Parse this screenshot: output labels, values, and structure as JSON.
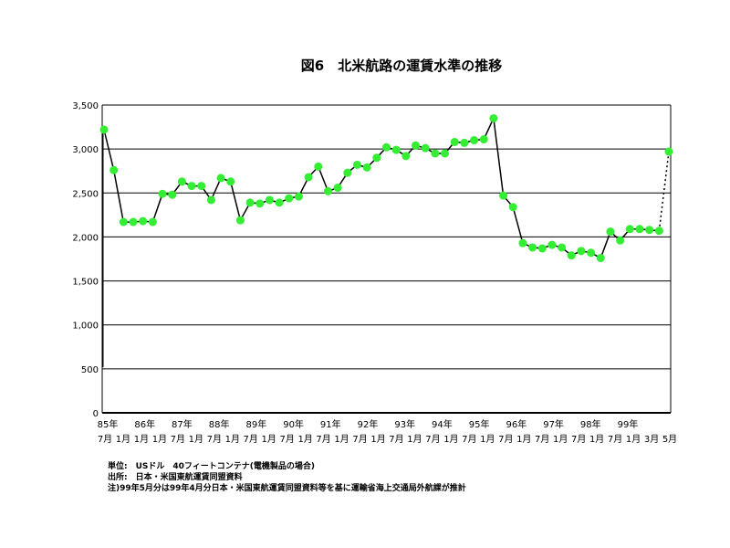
{
  "chart_data": {
    "type": "line",
    "title": "図6　北米航路の運賃水準の推移",
    "ylim": [
      0,
      3500
    ],
    "yticks": [
      "0",
      "500",
      "1,000",
      "1,500",
      "2,000",
      "2,500",
      "3,000",
      "3,500"
    ],
    "grid": true,
    "x_labels_top": [
      "85年",
      "86年",
      "87年",
      "88年",
      "89年",
      "90年",
      "91年",
      "92年",
      "93年",
      "94年",
      "95年",
      "96年",
      "97年",
      "98年",
      "99年"
    ],
    "x_labels_bottom": [
      "7月",
      "1月",
      "1月",
      "1月",
      "7月",
      "1月",
      "7月",
      "1月",
      "7月",
      "1月",
      "7月",
      "1月",
      "7月",
      "1月",
      "7月",
      "1月",
      "7月",
      "1月",
      "7月",
      "1月",
      "7月",
      "1月",
      "7月",
      "1月",
      "7月",
      "1月",
      "7月",
      "1月",
      "7月",
      "1月",
      "3月",
      "5月"
    ],
    "series": [
      {
        "values": [
          3220,
          2760,
          2170,
          2170,
          2180,
          2170,
          2490,
          2480,
          2630,
          2580,
          2580,
          2420,
          2670,
          2630,
          2190,
          2390,
          2380,
          2420,
          2390,
          2440,
          2460,
          2680,
          2800,
          2520,
          2560,
          2730,
          2820,
          2790,
          2900,
          3020,
          2990,
          2920,
          3040,
          3010,
          2950,
          2950,
          3080,
          3070,
          3100,
          3110,
          3350,
          2470,
          2340,
          1930,
          1880,
          1870,
          1910,
          1880,
          1790,
          1840,
          1820,
          1760,
          2060,
          1960,
          2090,
          2090,
          2080,
          2070,
          2970
        ]
      }
    ]
  },
  "notes": [
    "単位:　USドル　40フィートコンテナ(電機製品の場合)",
    "出所:　日本・米国東航運賃同盟資料",
    "注)99年5月分は99年4月分日本・米国東航運賃同盟資料等を基に運輸省海上交通局外航課が推計"
  ]
}
